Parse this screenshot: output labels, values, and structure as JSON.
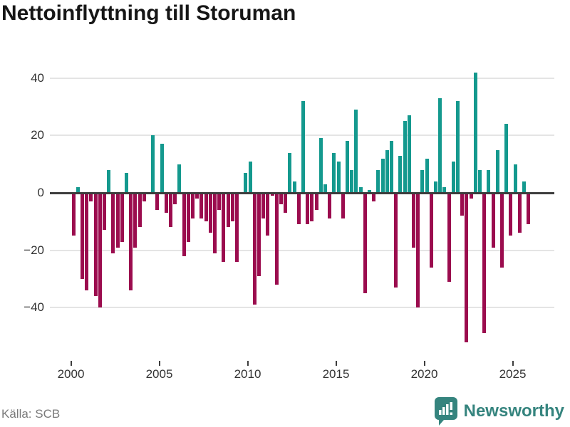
{
  "title": "Nettoinflyttning till Storuman",
  "source": "Källa: SCB",
  "brand": {
    "name": "Newsworthy",
    "logo_icon": "bar-chart-speech-bubble-icon",
    "color": "#35847e"
  },
  "colors": {
    "positive_bar": "#14998e",
    "negative_bar": "#9b0c4e",
    "zero_line": "#3d3d3d",
    "gridline": "#e4e4e4",
    "axis_text": "#333333",
    "source_text": "#7a7a7a",
    "background": "#ffffff"
  },
  "chart_data": {
    "type": "bar",
    "title": "Nettoinflyttning till Storuman",
    "frequency": "quarterly",
    "start_period": "2000Q1",
    "end_period": "2025Q4",
    "values": [
      -15,
      2,
      -30,
      -34,
      -3,
      -36,
      -40,
      -13,
      8,
      -21,
      -19,
      -17,
      7,
      -34,
      -19,
      -12,
      -3,
      0,
      20,
      -6,
      17,
      -7,
      -12,
      -4,
      10,
      -22,
      -17,
      -9,
      -2,
      -9,
      -10,
      -14,
      -21,
      -6,
      -24,
      -12,
      -10,
      -24,
      0,
      7,
      11,
      -39,
      -29,
      -9,
      -15,
      -1,
      -32,
      -4,
      -7,
      14,
      4,
      -11,
      32,
      -11,
      -10,
      -6,
      19,
      3,
      -9,
      14,
      11,
      -9,
      18,
      8,
      29,
      2,
      -35,
      1,
      -3,
      8,
      12,
      15,
      18,
      -33,
      13,
      25,
      27,
      -19,
      -40,
      8,
      12,
      -26,
      4,
      33,
      2,
      -31,
      11,
      32,
      -8,
      -52,
      -2,
      42,
      8,
      -49,
      8,
      -19,
      15,
      -26,
      24,
      -15,
      10,
      -14,
      4,
      -11
    ],
    "y_ticks": [
      40,
      20,
      0,
      -20,
      -40
    ],
    "y_tick_labels": [
      "40",
      "20",
      "0",
      "−20",
      "−40"
    ],
    "x_tick_years": [
      2000,
      2005,
      2010,
      2015,
      2020,
      2025
    ],
    "x_tick_labels": [
      "2000",
      "2005",
      "2010",
      "2015",
      "2020",
      "2025"
    ],
    "ylim": [
      -55,
      47
    ],
    "grid": "horizontal",
    "legend": "none"
  }
}
